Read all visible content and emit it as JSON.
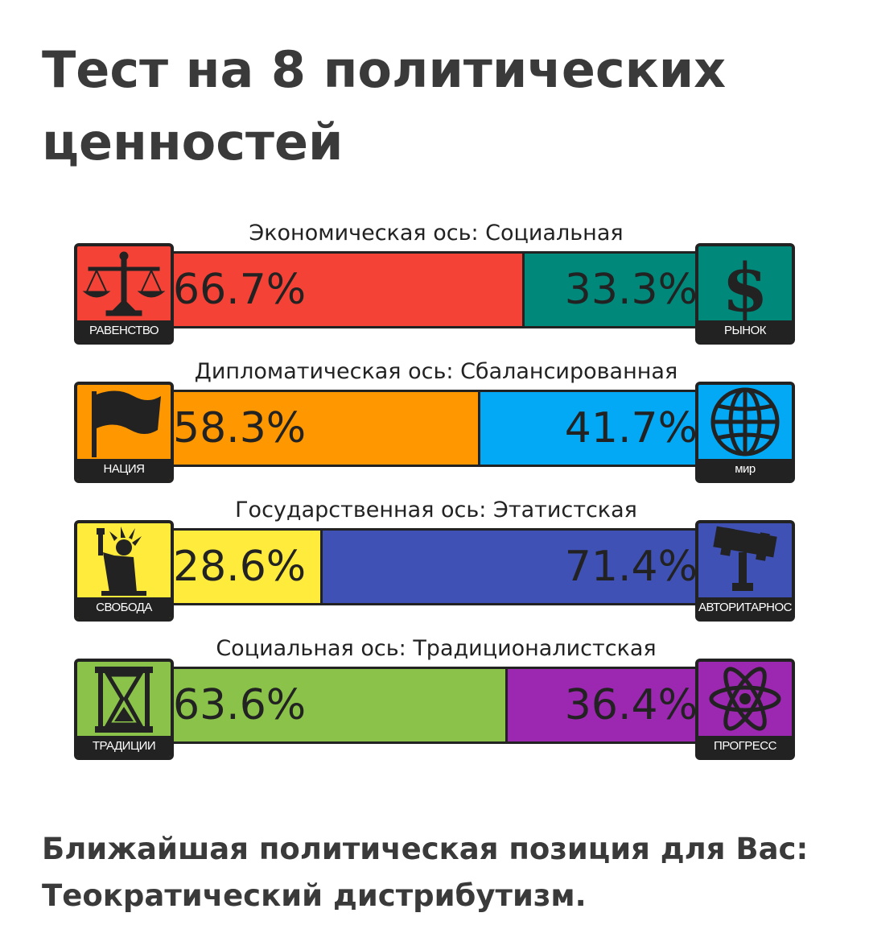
{
  "title": "Тест на 8 политических ценностей",
  "axes": [
    {
      "label": "Экономическая ось: Социальная",
      "left": {
        "caption": "РАВЕНСТВО",
        "percent": "66.7%",
        "value": 66.7,
        "color": "#f44336",
        "icon": "scales-icon"
      },
      "right": {
        "caption": "РЫНОК",
        "percent": "33.3%",
        "value": 33.3,
        "color": "#00897b",
        "icon": "dollar-icon"
      }
    },
    {
      "label": "Дипломатическая ось: Сбалансированная",
      "left": {
        "caption": "НАЦИЯ",
        "percent": "58.3%",
        "value": 58.3,
        "color": "#ff9800",
        "icon": "flag-icon"
      },
      "right": {
        "caption": "мир",
        "percent": "41.7%",
        "value": 41.7,
        "color": "#03a9f4",
        "icon": "globe-icon"
      }
    },
    {
      "label": "Государственная ось: Этатистская",
      "left": {
        "caption": "СВОБОДА",
        "percent": "28.6%",
        "value": 28.6,
        "color": "#ffeb3b",
        "icon": "statue-of-liberty-icon"
      },
      "right": {
        "caption": "АВТОРИТАРНОСТЬ",
        "percent": "71.4%",
        "value": 71.4,
        "color": "#3f51b5",
        "icon": "gavel-icon"
      }
    },
    {
      "label": "Социальная ось: Традиционалистская",
      "left": {
        "caption": "ТРАДИЦИИ",
        "percent": "63.6%",
        "value": 63.6,
        "color": "#8bc34a",
        "icon": "hourglass-icon"
      },
      "right": {
        "caption": "ПРОГРЕСС",
        "percent": "36.4%",
        "value": 36.4,
        "color": "#9c27b0",
        "icon": "atom-icon"
      }
    }
  ],
  "result": "Ближайшая политическая позиция для Вас: Теократический дистрибутизм."
}
